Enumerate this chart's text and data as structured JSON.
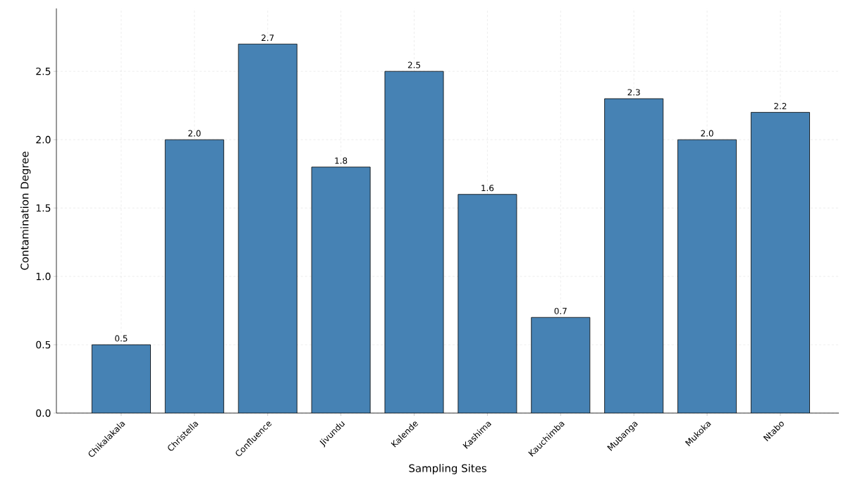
{
  "chart_data": {
    "type": "bar",
    "xlabel": "Sampling Sites",
    "ylabel": "Contamination Degree",
    "categories": [
      "Chikalakala",
      "Christella",
      "Confluence",
      "Jivundu",
      "Kalende",
      "Kashima",
      "Kauchimba",
      "Mubanga",
      "Mukoka",
      "Ntabo"
    ],
    "values": [
      0.5,
      2.0,
      2.7,
      1.8,
      2.5,
      1.6,
      0.7,
      2.3,
      2.0,
      2.2
    ],
    "color": "#4682b4",
    "ylim": [
      0,
      2.96
    ],
    "yticks": [
      {
        "value": 0,
        "label": "0.0"
      },
      {
        "value": 0.5,
        "label": "0.5"
      },
      {
        "value": 1.0,
        "label": "1.0"
      },
      {
        "value": 1.5,
        "label": "1.5"
      },
      {
        "value": 2.0,
        "label": "2.0"
      },
      {
        "value": 2.5,
        "label": "2.5"
      }
    ],
    "value_labels": [
      "0.5",
      "2.0",
      "2.7",
      "1.8",
      "2.5",
      "1.6",
      "0.7",
      "2.3",
      "2.0",
      "2.2"
    ],
    "grid": true
  }
}
